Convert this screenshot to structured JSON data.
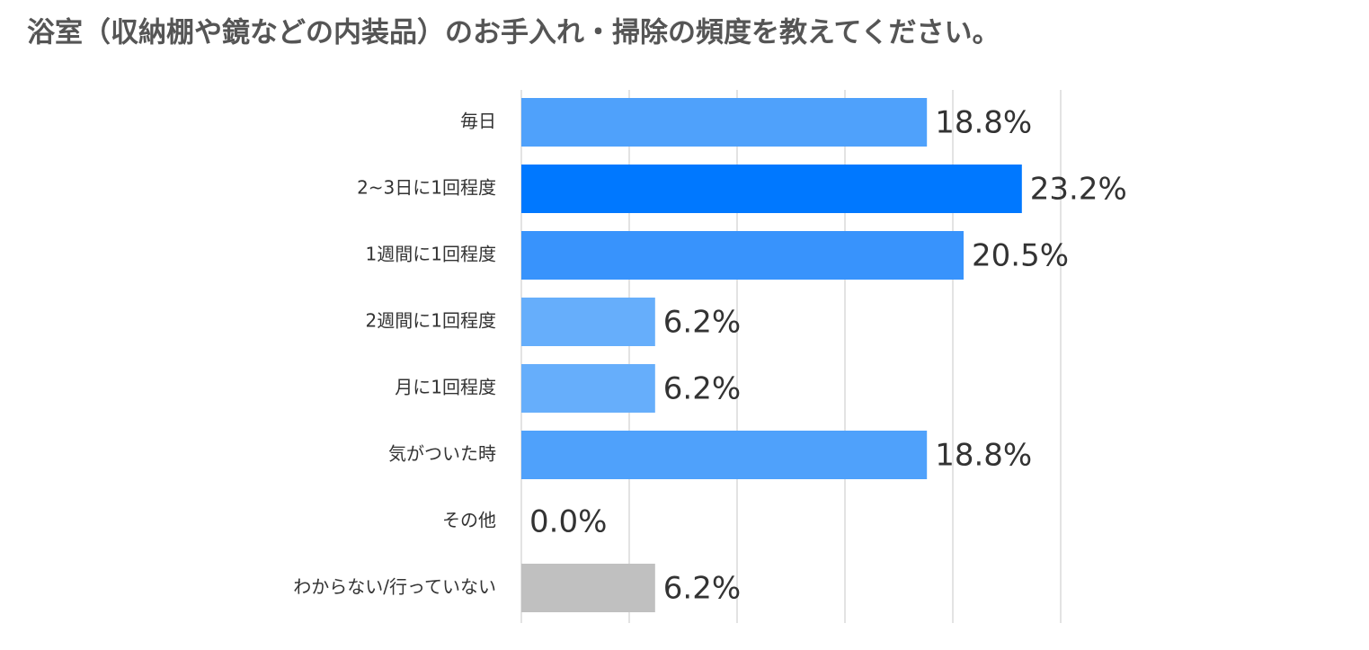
{
  "chart_data": {
    "type": "hbar",
    "title": "浴室（収納棚や鏡などの内装品）のお手入れ・掃除の頻度を教えてください。",
    "categories": [
      "毎日",
      "2~3日に1回程度",
      "1週間に1回程度",
      "2週間に1回程度",
      "月に1回程度",
      "気がついた時",
      "その他",
      "わからない/行っていない"
    ],
    "values": [
      18.8,
      23.2,
      20.5,
      6.2,
      6.2,
      18.8,
      0.0,
      6.2
    ],
    "value_labels": [
      "18.8%",
      "23.2%",
      "20.5%",
      "6.2%",
      "6.2%",
      "18.8%",
      "0.0%",
      "6.2%"
    ],
    "colors": [
      "#4fa1fb",
      "#0078ff",
      "#3893fc",
      "#66aefb",
      "#66aefb",
      "#4fa1fb",
      "#4fa1fb",
      "#c0c0c0"
    ],
    "xlim": [
      0,
      25
    ],
    "xticks": [
      0,
      5,
      10,
      15,
      20,
      25
    ],
    "grid": true
  }
}
